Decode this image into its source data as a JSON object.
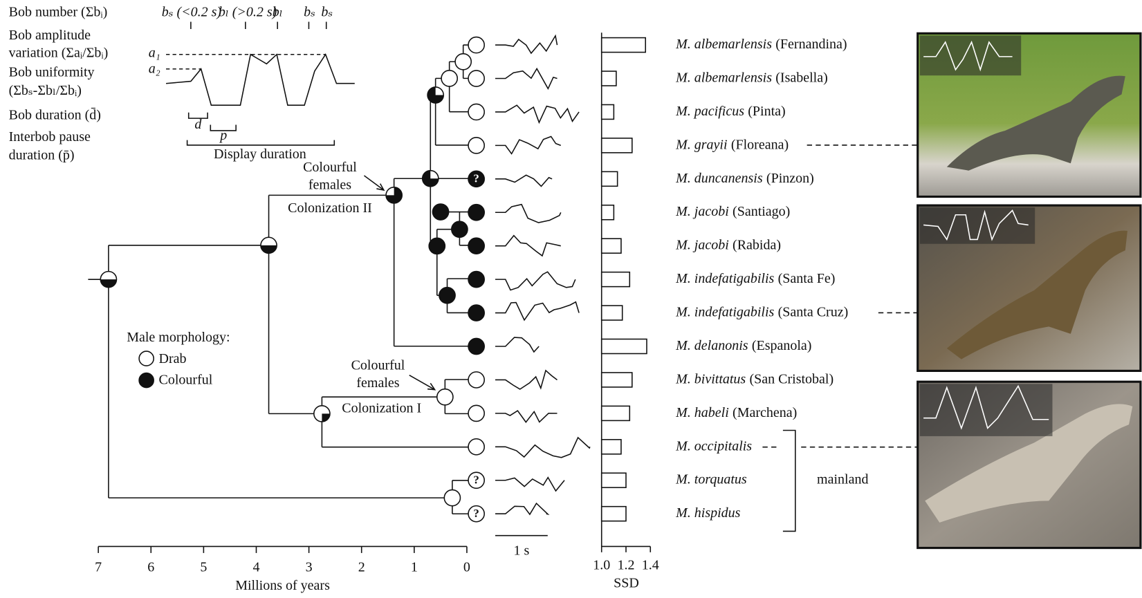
{
  "bob_legend": {
    "rows": [
      "Bob number (Σbᵢ)",
      "Bob amplitude",
      "variation (Σaᵢ/Σbᵢ)",
      "Bob uniformity",
      "(Σbₛ-Σbₗ/Σbᵢ)",
      "Bob duration (d̄)",
      "Interbob pause",
      "duration (p̄)"
    ],
    "diagram_labels": [
      "bₛ (<0.2 s)",
      "bₗ (>0.2 s)",
      "bₗ",
      "bₛ",
      "bₛ",
      "a₁",
      "a₂",
      "d",
      "p",
      "Display duration"
    ]
  },
  "morphology_legend": {
    "title": "Male morphology:",
    "drab": "Drab",
    "colourful": "Colourful"
  },
  "tree": {
    "annotations": [
      "Colourful",
      "females",
      "Colonization II",
      "Colourful",
      "females",
      "Colonization I"
    ],
    "unknown": "?"
  },
  "time_axis": {
    "label": "Millions of years",
    "xlim": [
      7,
      0
    ],
    "xticks": [
      7,
      6,
      5,
      4,
      3,
      2,
      1,
      0
    ]
  },
  "scale_bar": "1 s",
  "ssd_chart": {
    "type": "bar",
    "xlabel": "SSD",
    "xlim": [
      1,
      1.4
    ],
    "xticks": [
      {
        "value": 1,
        "label": "1.0"
      },
      {
        "value": 1.2,
        "label": "1.2"
      },
      {
        "value": 1.4,
        "label": "1.4"
      }
    ],
    "values": [
      1.36,
      1.12,
      1.1,
      1.25,
      1.13,
      1.1,
      1.16,
      1.23,
      1.17,
      1.37,
      1.25,
      1.23,
      1.16,
      1.2,
      1.2
    ]
  },
  "species": [
    {
      "name": "M. albemarlensis",
      "locality": "(Fernandina)"
    },
    {
      "name": "M. albemarlensis",
      "locality": "(Isabella)"
    },
    {
      "name": "M. pacificus",
      "locality": "(Pinta)"
    },
    {
      "name": "M. grayii",
      "locality": "(Floreana)"
    },
    {
      "name": "M. duncanensis",
      "locality": "(Pinzon)"
    },
    {
      "name": "M. jacobi",
      "locality": "(Santiago)"
    },
    {
      "name": "M. jacobi",
      "locality": "(Rabida)"
    },
    {
      "name": "M. indefatigabilis",
      "locality": "(Santa Fe)"
    },
    {
      "name": "M. indefatigabilis",
      "locality": "(Santa Cruz)"
    },
    {
      "name": "M. delanonis",
      "locality": "(Espanola)"
    },
    {
      "name": "M. bivittatus",
      "locality": "(San Cristobal)"
    },
    {
      "name": "M. habeli",
      "locality": "(Marchena)"
    },
    {
      "name": "M. occipitalis"
    },
    {
      "name": "M. torquatus"
    },
    {
      "name": "M. hispidus"
    }
  ],
  "mainland_label": "mainland"
}
